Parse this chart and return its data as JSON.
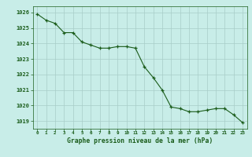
{
  "x": [
    0,
    1,
    2,
    3,
    4,
    5,
    6,
    7,
    8,
    9,
    10,
    11,
    12,
    13,
    14,
    15,
    16,
    17,
    18,
    19,
    20,
    21,
    22,
    23
  ],
  "y": [
    1025.9,
    1025.5,
    1025.3,
    1024.7,
    1024.7,
    1024.1,
    1023.9,
    1023.7,
    1023.7,
    1023.8,
    1023.8,
    1023.7,
    1022.5,
    1021.8,
    1021.0,
    1019.9,
    1019.8,
    1019.6,
    1019.6,
    1019.7,
    1019.8,
    1019.8,
    1019.4,
    1018.9
  ],
  "line_color": "#1a5c1a",
  "marker": "+",
  "bg_color": "#c8ede8",
  "grid_color": "#a8ccc8",
  "xlabel": "Graphe pression niveau de la mer (hPa)",
  "xlabel_color": "#1a5c1a",
  "tick_color": "#1a5c1a",
  "ylabel_ticks": [
    1019,
    1020,
    1021,
    1022,
    1023,
    1024,
    1025,
    1026
  ],
  "ylim": [
    1018.5,
    1026.4
  ],
  "xlim": [
    -0.5,
    23.5
  ],
  "xticks": [
    0,
    1,
    2,
    3,
    4,
    5,
    6,
    7,
    8,
    9,
    10,
    11,
    12,
    13,
    14,
    15,
    16,
    17,
    18,
    19,
    20,
    21,
    22,
    23
  ]
}
